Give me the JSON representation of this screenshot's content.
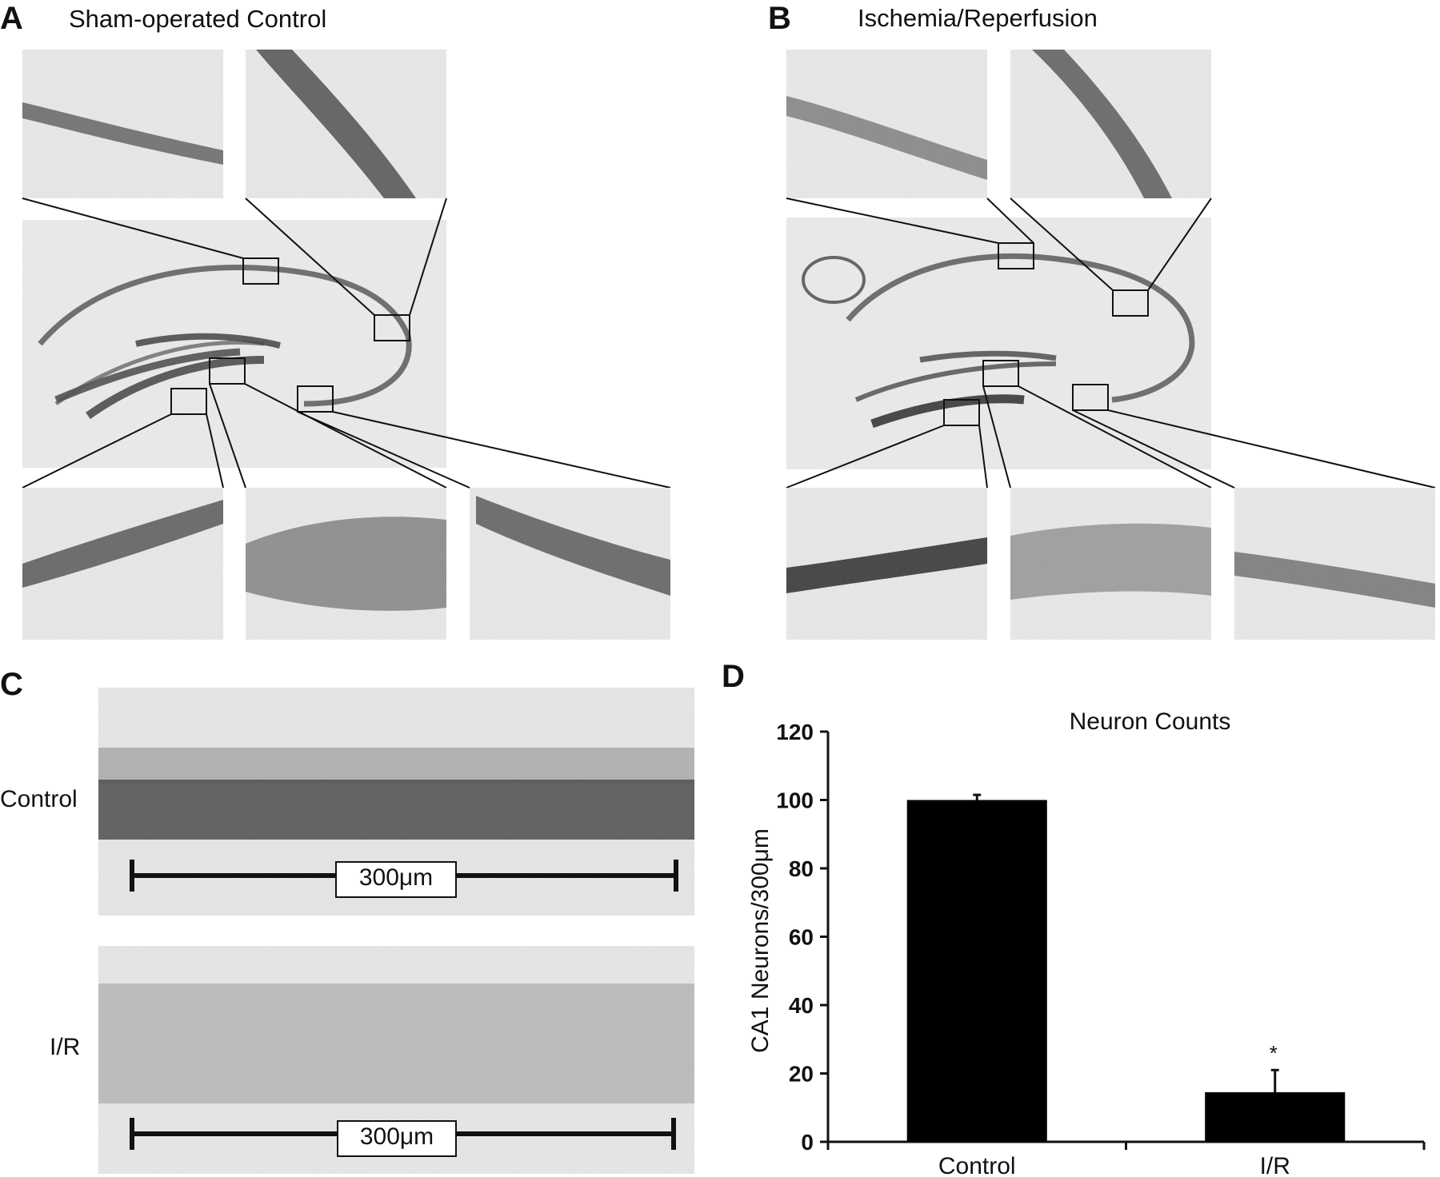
{
  "panels": {
    "A": {
      "letter": "A",
      "title": "Sham-operated Control"
    },
    "B": {
      "letter": "B",
      "title": "Ischemia/Reperfusion"
    },
    "C": {
      "letter": "C",
      "rows": [
        {
          "label": "Control",
          "scale_bar": "300μm"
        },
        {
          "label": "I/R",
          "scale_bar": "300μm"
        }
      ]
    },
    "D": {
      "letter": "D"
    }
  },
  "colors": {
    "bar": "#000000",
    "stain_dark": "#3a3a3a",
    "tissue_bg": "#e6e6e6"
  },
  "chart_data": {
    "type": "bar",
    "title": "Neuron Counts",
    "xlabel": "",
    "ylabel": "CA1 Neurons/300μm",
    "categories": [
      "Control",
      "I/R"
    ],
    "values": [
      100,
      14.5
    ],
    "error": [
      1.5,
      6.5
    ],
    "annotations": [
      "",
      "*"
    ],
    "ylim": [
      0,
      120
    ],
    "yticks": [
      0,
      20,
      40,
      60,
      80,
      100,
      120
    ],
    "grid": false,
    "legend": "none"
  }
}
